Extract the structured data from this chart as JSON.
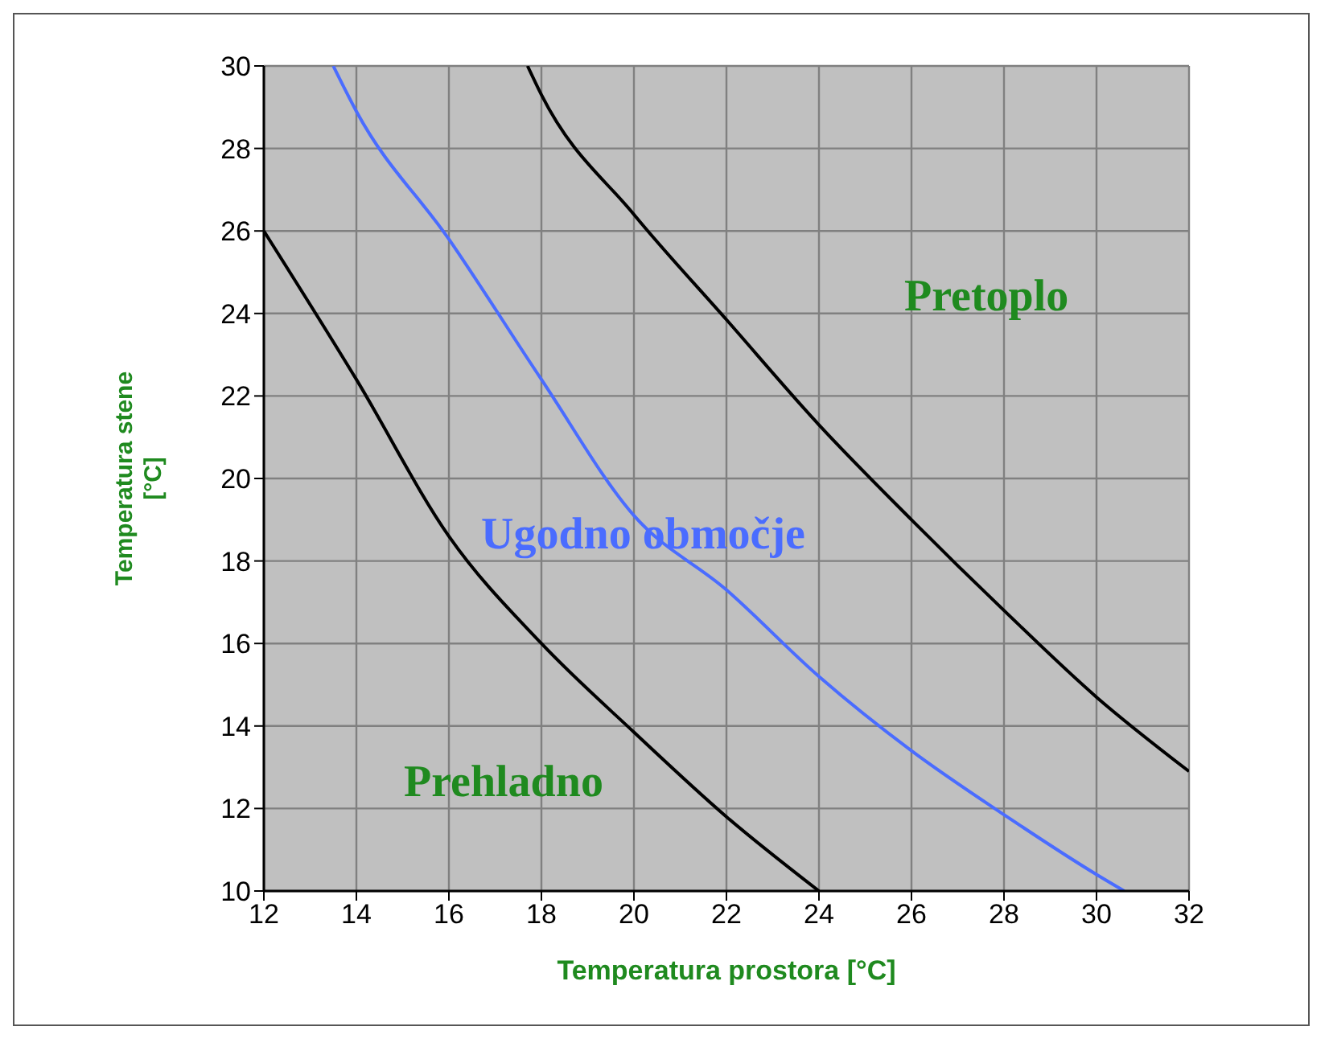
{
  "chart_data": {
    "type": "line",
    "xlabel": "Temperatura prostora [°C]",
    "ylabel": "Temperatura stene [°C]",
    "xlim": [
      12,
      32
    ],
    "xticks": [
      12,
      14,
      16,
      18,
      20,
      22,
      24,
      26,
      28,
      30,
      32
    ],
    "ylim": [
      10,
      30
    ],
    "yticks": [
      10,
      12,
      14,
      16,
      18,
      20,
      22,
      24,
      26,
      28,
      30
    ],
    "grid": true,
    "legend": false,
    "line_style": "solid",
    "series": [
      {
        "color": "#000000",
        "x": [
          12,
          14,
          16,
          18,
          20,
          22,
          24
        ],
        "values": [
          26,
          22.4,
          18.6,
          16,
          13.85,
          11.8,
          10
        ]
      },
      {
        "color": "#4a6cff",
        "x": [
          13.5,
          14,
          16,
          18,
          20,
          22,
          24,
          26,
          28,
          30,
          30.6
        ],
        "values": [
          30,
          28.9,
          25.8,
          22.4,
          19.1,
          17.3,
          15.2,
          13.4,
          11.85,
          10.4,
          10
        ]
      },
      {
        "color": "#000000",
        "x": [
          17.7,
          18,
          20,
          22,
          24,
          26,
          28,
          30,
          32
        ],
        "values": [
          30,
          29.3,
          26.4,
          23.85,
          21.3,
          19,
          16.8,
          14.7,
          12.9
        ]
      }
    ],
    "annotations": [
      "Pretoplo",
      "Ugodno območje",
      "Prehladno"
    ]
  }
}
